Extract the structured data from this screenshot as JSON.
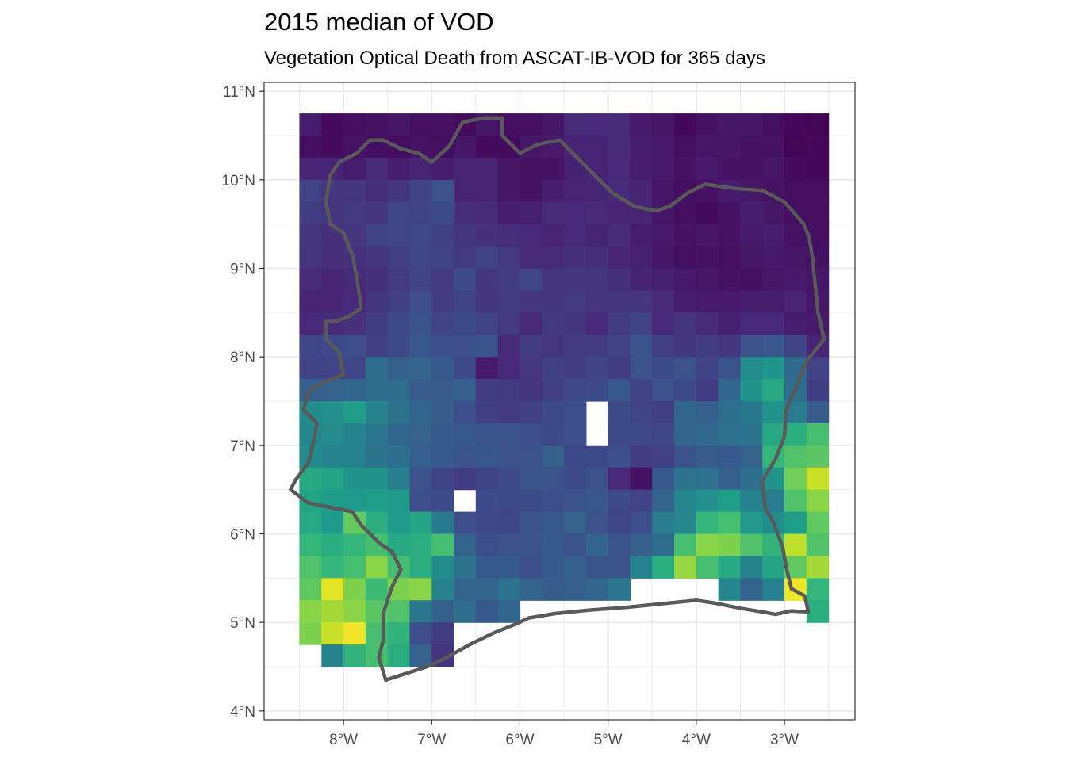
{
  "chart_data": {
    "type": "heatmap",
    "title": "2015 median of VOD",
    "subtitle": "Vegetation Optical Death from ASCAT-IB-VOD for 365 days",
    "xlabel": "",
    "ylabel": "",
    "xlim": [
      -8.9,
      -2.2
    ],
    "ylim": [
      3.9,
      11.1
    ],
    "x_ticks": [
      -8,
      -7,
      -6,
      -5,
      -4,
      -3
    ],
    "x_tick_labels": [
      "8°W",
      "7°W",
      "6°W",
      "5°W",
      "4°W",
      "3°W"
    ],
    "y_ticks": [
      4,
      5,
      6,
      7,
      8,
      9,
      10,
      11
    ],
    "y_tick_labels": [
      "4°N",
      "5°N",
      "6°N",
      "7°N",
      "8°N",
      "9°N",
      "10°N",
      "11°N"
    ],
    "grid": true,
    "legend": "none",
    "colorscale": "viridis",
    "colorscale_range": [
      0,
      1
    ],
    "grid_origin": {
      "lon_west": -8.5,
      "lat_north": 10.75,
      "cell_deg": 0.25
    },
    "ncols": 24,
    "nrows": 25,
    "null_code": "-",
    "grid_values": [
      "0.08 0.03 0.04 0.05 0.06 0.04 0.05 0.03 0.06 0.04 0.04 0.06 0.12 0.11 0.12 0.07 0.06 0.02 0.05 0.06 0.06 0.04 0.02 0.01",
      "0.04 0.03 0.05 0.04 0.04 0.05 0.04 0.06 0.03 0.03 0.06 0.07 0.10 0.10 0.12 0.08 0.07 0.04 0.06 0.06 0.05 0.05 0.01 0.02",
      "0.10 0.10 0.08 0.12 0.08 0.10 0.08 0.10 0.10 0.06 0.05 0.05 0.09 0.10 0.11 0.08 0.07 0.05 0.07 0.05 0.05 0.06 0.03 0.02",
      "0.20 0.16 0.16 0.13 0.15 0.20 0.25 0.10 0.10 0.06 0.05 0.08 0.10 0.10 0.12 0.10 0.06 0.04 0.05 0.07 0.06 0.05 0.04 0.04",
      "0.18 0.16 0.17 0.16 0.21 0.20 0.22 0.13 0.12 0.08 0.09 0.12 0.11 0.12 0.10 0.10 0.06 0.04 0.03 0.05 0.08 0.06 0.04 0.04",
      "0.16 0.14 0.16 0.20 0.21 0.22 0.19 0.16 0.14 0.13 0.11 0.10 0.11 0.10 0.12 0.08 0.07 0.05 0.06 0.05 0.07 0.08 0.05 0.04",
      "0.15 0.13 0.14 0.15 0.19 0.21 0.20 0.17 0.20 0.17 0.12 0.12 0.14 0.13 0.10 0.09 0.06 0.04 0.05 0.04 0.06 0.07 0.06 0.05",
      "0.12 0.10 0.12 0.14 0.17 0.20 0.17 0.23 0.15 0.18 0.21 0.15 0.16 0.15 0.14 0.10 0.09 0.07 0.06 0.05 0.04 0.06 0.07 0.06",
      "0.10 0.10 0.11 0.16 0.19 0.24 0.18 0.20 0.15 0.17 0.16 0.16 0.17 0.15 0.16 0.16 0.12 0.08 0.07 0.07 0.08 0.08 0.10 0.06",
      "0.11 0.12 0.14 0.18 0.22 0.25 0.20 0.22 0.20 0.17 0.12 0.17 0.16 0.11 0.18 0.20 0.11 0.15 0.12 0.09 0.11 0.11 0.08 0.07",
      "0.21 0.22 0.24 0.19 0.22 0.27 0.24 0.24 0.26 0.12 0.18 0.15 0.17 0.17 0.20 0.26 0.19 0.16 0.18 0.16 0.25 0.27 0.20 0.10",
      "0.20 0.20 0.21 0.35 0.30 0.32 0.28 0.22 0.07 0.11 0.16 0.19 0.18 0.20 0.18 0.25 0.23 0.25 0.20 0.26 0.48 0.52 0.34 0.20",
      "0.30 0.31 0.33 0.35 0.35 0.29 0.29 0.30 0.18 0.17 0.15 0.19 0.22 0.23 0.27 0.20 0.25 0.22 0.18 0.33 0.52 0.60 0.36 0.18",
      "0.48 0.50 0.55 0.45 0.38 0.33 0.29 0.24 0.19 0.17 0.19 0.23 0.24 -    0.23 0.20 0.19 0.33 0.30 0.36 0.40 0.51 0.42 0.29",
      "0.46 0.48 0.45 0.40 0.33 0.31 0.28 0.27 0.26 0.26 0.24 0.22 0.24 -    0.22 0.22 0.21 0.32 0.34 0.37 0.38 0.60 0.62 0.70",
      "0.48 0.45 0.44 0.38 0.36 0.30 0.28 0.26 0.27 0.25 0.25 0.30 0.22 0.22 0.24 0.18 0.19 0.26 0.29 0.28 0.31 0.66 0.72 0.74",
      "0.60 0.58 0.52 0.52 0.43 0.25 0.20 0.18 0.20 0.22 0.25 0.25 0.23 0.25 0.11 0.05 0.27 0.38 0.37 0.30 0.36 0.52 0.78 0.92",
      "0.58 0.55 0.54 0.55 0.54 0.24 0.23 -    0.23 0.22 0.23 0.24 0.25 0.27 0.22 0.20 0.32 0.46 0.50 0.55 0.44 0.42 0.72 0.82",
      "0.60 0.54 0.76 0.62 0.54 0.58 0.41 0.24 0.22 0.21 0.26 0.27 0.31 0.25 0.21 0.24 0.42 0.47 0.66 0.70 0.53 0.49 0.55 0.75",
      "0.66 0.62 0.66 0.70 0.60 0.62 0.70 0.32 0.24 0.25 0.26 0.28 0.26 0.32 0.26 0.30 0.35 0.70 0.82 0.80 0.72 0.65 0.90 0.72",
      "0.72 0.66 0.70 0.82 0.70 0.62 0.48 0.38 0.28 0.28 0.24 0.28 0.30 0.26 0.25 0.44 0.62 0.84 0.70 0.60 0.45 0.58 0.75 0.86",
      "0.75 0.96 0.80 0.68 0.80 0.82 0.45 0.32 0.32 0.38 0.32 0.29 0.30 0.33 0.40 -    -    -    -    0.46 0.32 0.44 0.98 0.66",
      "0.82 0.86 0.82 0.74 0.72 0.40 0.30 0.35 0.27 0.33 -    -    -    -    -    -    -    -    -    -    -    -    -    0.62",
      "0.80 0.92 0.98 0.70 0.65 0.24 0.18 -    -    -    -    -    -    -    -    -    -    -    -    -    -    -    -    -   ",
      "-    0.45 0.65 0.70 0.62 0.31 0.15 -    -    -    -    -    -    -    -    -    -    -    -    -    -    -    -    -   "
    ],
    "outline_name": "Côte d'Ivoire border",
    "outline_color": "#595959",
    "outline_lonlat": [
      [
        -7.52,
        4.35
      ],
      [
        -7.3,
        4.42
      ],
      [
        -7.05,
        4.5
      ],
      [
        -6.8,
        4.62
      ],
      [
        -6.55,
        4.76
      ],
      [
        -6.3,
        4.88
      ],
      [
        -6.05,
        4.98
      ],
      [
        -5.9,
        5.05
      ],
      [
        -5.6,
        5.1
      ],
      [
        -5.2,
        5.14
      ],
      [
        -4.8,
        5.17
      ],
      [
        -4.3,
        5.22
      ],
      [
        -4.0,
        5.25
      ],
      [
        -3.8,
        5.22
      ],
      [
        -3.5,
        5.16
      ],
      [
        -3.2,
        5.11
      ],
      [
        -3.1,
        5.09
      ],
      [
        -2.93,
        5.13
      ],
      [
        -2.73,
        5.12
      ],
      [
        -2.77,
        5.3
      ],
      [
        -2.92,
        5.38
      ],
      [
        -2.98,
        5.62
      ],
      [
        -3.02,
        5.85
      ],
      [
        -3.12,
        6.12
      ],
      [
        -3.22,
        6.3
      ],
      [
        -3.25,
        6.6
      ],
      [
        -3.1,
        6.85
      ],
      [
        -3.0,
        7.1
      ],
      [
        -2.98,
        7.4
      ],
      [
        -2.85,
        7.7
      ],
      [
        -2.75,
        7.95
      ],
      [
        -2.55,
        8.2
      ],
      [
        -2.62,
        8.5
      ],
      [
        -2.65,
        8.8
      ],
      [
        -2.68,
        9.1
      ],
      [
        -2.72,
        9.35
      ],
      [
        -2.78,
        9.5
      ],
      [
        -3.0,
        9.75
      ],
      [
        -3.25,
        9.88
      ],
      [
        -3.55,
        9.9
      ],
      [
        -3.9,
        9.95
      ],
      [
        -4.1,
        9.85
      ],
      [
        -4.3,
        9.7
      ],
      [
        -4.45,
        9.65
      ],
      [
        -4.7,
        9.7
      ],
      [
        -4.95,
        9.85
      ],
      [
        -5.2,
        10.1
      ],
      [
        -5.4,
        10.3
      ],
      [
        -5.55,
        10.45
      ],
      [
        -5.8,
        10.4
      ],
      [
        -6.0,
        10.3
      ],
      [
        -6.2,
        10.5
      ],
      [
        -6.2,
        10.7
      ],
      [
        -6.4,
        10.7
      ],
      [
        -6.65,
        10.65
      ],
      [
        -6.8,
        10.38
      ],
      [
        -7.0,
        10.2
      ],
      [
        -7.15,
        10.3
      ],
      [
        -7.35,
        10.35
      ],
      [
        -7.55,
        10.45
      ],
      [
        -7.7,
        10.45
      ],
      [
        -7.85,
        10.3
      ],
      [
        -8.05,
        10.2
      ],
      [
        -8.15,
        10.05
      ],
      [
        -8.2,
        9.75
      ],
      [
        -8.15,
        9.5
      ],
      [
        -8.0,
        9.4
      ],
      [
        -7.9,
        9.15
      ],
      [
        -7.85,
        8.9
      ],
      [
        -7.8,
        8.55
      ],
      [
        -7.95,
        8.45
      ],
      [
        -8.1,
        8.4
      ],
      [
        -8.2,
        8.4
      ],
      [
        -8.2,
        8.2
      ],
      [
        -8.05,
        8.05
      ],
      [
        -8.0,
        7.8
      ],
      [
        -8.25,
        7.7
      ],
      [
        -8.4,
        7.6
      ],
      [
        -8.45,
        7.4
      ],
      [
        -8.3,
        7.25
      ],
      [
        -8.35,
        7.0
      ],
      [
        -8.4,
        6.8
      ],
      [
        -8.55,
        6.6
      ],
      [
        -8.6,
        6.5
      ],
      [
        -8.4,
        6.35
      ],
      [
        -8.15,
        6.3
      ],
      [
        -7.9,
        6.25
      ],
      [
        -7.8,
        6.1
      ],
      [
        -7.6,
        5.9
      ],
      [
        -7.45,
        5.8
      ],
      [
        -7.35,
        5.6
      ],
      [
        -7.45,
        5.4
      ],
      [
        -7.55,
        5.1
      ],
      [
        -7.55,
        4.8
      ],
      [
        -7.6,
        4.6
      ],
      [
        -7.52,
        4.35
      ]
    ]
  }
}
